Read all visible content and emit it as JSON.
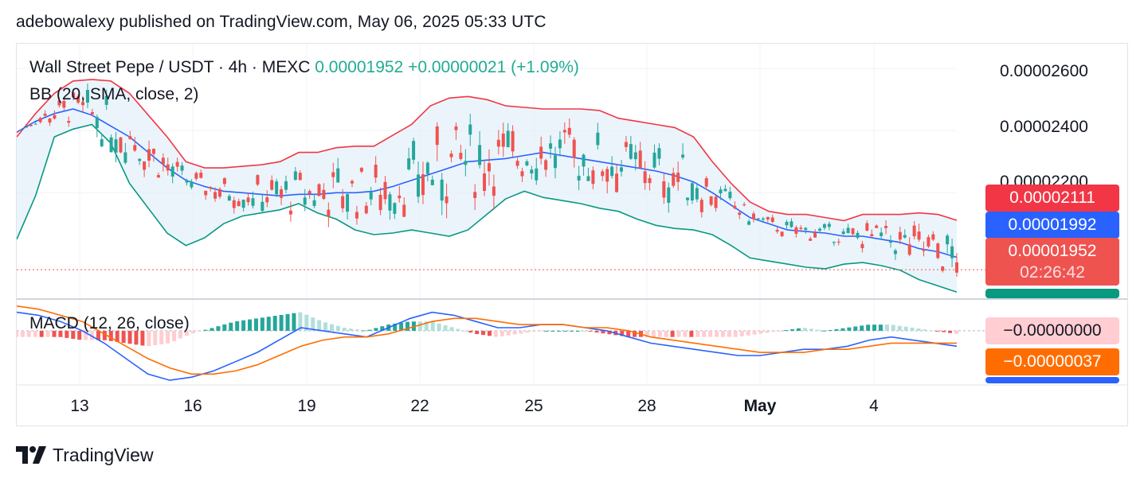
{
  "header": {
    "text": "adebowalexy published on TradingView.com, May 06, 2025 05:33 UTC"
  },
  "legend": {
    "symbol": "Wall Street Pepe / USDT · 4h · MEXC",
    "last": "0.00001952",
    "change": "+0.00000021 (+1.09%)",
    "bb": "BB (20, SMA, close, 2)",
    "macd": "MACD (12, 26, close)"
  },
  "price_tags": {
    "bb_upper": "0.00002111",
    "bb_basis": "0.00001992",
    "last_price": "0.00001952",
    "countdown": "02:26:42",
    "macd_hist": "−0.00000000",
    "macd_signal": "−0.00000037"
  },
  "colors": {
    "up": "#26a69a",
    "down": "#ef5350",
    "bb_upper": "#f23645",
    "bb_basis": "#2962ff",
    "bb_lower": "#089981",
    "bb_fill": "#e3effa",
    "macd_line": "#2962ff",
    "signal_line": "#ff6d00",
    "hist_up_strong": "#26a69a",
    "hist_up_weak": "#b2dfdb",
    "hist_down_strong": "#ef5350",
    "hist_down_weak": "#ffcdd2"
  },
  "footer": {
    "brand": "TradingView"
  },
  "chart_data": [
    {
      "type": "candlestick",
      "title": "Wall Street Pepe / USDT · 4h · MEXC",
      "x_ticks": [
        "13",
        "16",
        "19",
        "22",
        "25",
        "28",
        "May",
        "4"
      ],
      "y_ticks": [
        "0.00002600",
        "0.00002400",
        "0.00002200"
      ],
      "ylim": [
        1.86e-05,
        2.68e-05
      ],
      "grid": true,
      "last_price": 1.952e-05,
      "bollinger": {
        "period": 20,
        "upper_last": 2.111e-05,
        "basis_last": 1.992e-05
      },
      "series": [
        {
          "name": "BB upper",
          "values": [
            2.38e-05,
            2.455e-05,
            2.52e-05,
            2.56e-05,
            2.565e-05,
            2.56e-05,
            2.52e-05,
            2.45e-05,
            2.38e-05,
            2.3e-05,
            2.28e-05,
            2.28e-05,
            2.285e-05,
            2.29e-05,
            2.3e-05,
            2.33e-05,
            2.33e-05,
            2.345e-05,
            2.35e-05,
            2.35e-05,
            2.385e-05,
            2.42e-05,
            2.48e-05,
            2.505e-05,
            2.51e-05,
            2.5e-05,
            2.48e-05,
            2.475e-05,
            2.47e-05,
            2.47e-05,
            2.47e-05,
            2.465e-05,
            2.44e-05,
            2.43e-05,
            2.42e-05,
            2.41e-05,
            2.38e-05,
            2.3e-05,
            2.23e-05,
            2.17e-05,
            2.14e-05,
            2.13e-05,
            2.13e-05,
            2.12e-05,
            2.11e-05,
            2.13e-05,
            2.13e-05,
            2.13e-05,
            2.135e-05,
            2.13e-05,
            2.111e-05
          ]
        },
        {
          "name": "BB basis",
          "values": [
            2.395e-05,
            2.43e-05,
            2.455e-05,
            2.47e-05,
            2.45e-05,
            2.415e-05,
            2.38e-05,
            2.33e-05,
            2.28e-05,
            2.24e-05,
            2.22e-05,
            2.205e-05,
            2.2e-05,
            2.195e-05,
            2.19e-05,
            2.195e-05,
            2.195e-05,
            2.2e-05,
            2.2e-05,
            2.205e-05,
            2.22e-05,
            2.24e-05,
            2.26e-05,
            2.28e-05,
            2.3e-05,
            2.305e-05,
            2.31e-05,
            2.32e-05,
            2.33e-05,
            2.32e-05,
            2.31e-05,
            2.3e-05,
            2.29e-05,
            2.28e-05,
            2.27e-05,
            2.255e-05,
            2.235e-05,
            2.2e-05,
            2.16e-05,
            2.12e-05,
            2.1e-05,
            2.08e-05,
            2.075e-05,
            2.07e-05,
            2.06e-05,
            2.06e-05,
            2.05e-05,
            2.04e-05,
            2.02e-05,
            2.01e-05,
            1.992e-05
          ]
        },
        {
          "name": "BB lower",
          "values": [
            2.05e-05,
            2.19e-05,
            2.38e-05,
            2.405e-05,
            2.42e-05,
            2.36e-05,
            2.23e-05,
            2.15e-05,
            2.07e-05,
            2.03e-05,
            2.055e-05,
            2.1e-05,
            2.125e-05,
            2.135e-05,
            2.145e-05,
            2.165e-05,
            2.135e-05,
            2.115e-05,
            2.08e-05,
            2.065e-05,
            2.07e-05,
            2.08e-05,
            2.07e-05,
            2.06e-05,
            2.08e-05,
            2.13e-05,
            2.18e-05,
            2.205e-05,
            2.185e-05,
            2.175e-05,
            2.165e-05,
            2.15e-05,
            2.14e-05,
            2.115e-05,
            2.095e-05,
            2.085e-05,
            2.08e-05,
            2.065e-05,
            2.03e-05,
            1.99e-05,
            1.98e-05,
            1.97e-05,
            1.96e-05,
            1.955e-05,
            1.97e-05,
            1.975e-05,
            1.965e-05,
            1.95e-05,
            1.92e-05,
            1.9e-05,
            1.88e-05
          ]
        }
      ]
    },
    {
      "type": "line",
      "title": "MACD (12, 26, close)",
      "series": [
        {
          "name": "MACD",
          "values": [
            6e-07,
            5e-07,
            3e-07,
            0.0,
            -4e-07,
            -9e-07,
            -1.4e-06,
            -1.6e-06,
            -1.5e-06,
            -1.3e-06,
            -1e-06,
            -7e-07,
            -3e-07,
            1e-07,
            0.0,
            -1e-07,
            -2e-07,
            1e-07,
            4e-07,
            6e-07,
            5e-07,
            3e-07,
            1e-07,
            1e-07,
            2e-07,
            2e-07,
            1e-07,
            0.0,
            -2e-07,
            -4e-07,
            -5e-07,
            -6e-07,
            -7e-07,
            -8e-07,
            -8e-07,
            -7e-07,
            -6e-07,
            -6e-07,
            -5e-07,
            -3e-07,
            -2e-07,
            -3e-07,
            -4e-07,
            -5e-07
          ]
        },
        {
          "name": "Signal",
          "values": [
            8e-07,
            7e-07,
            5e-07,
            3e-07,
            -1e-07,
            -5e-07,
            -9e-07,
            -1.2e-06,
            -1.4e-06,
            -1.4e-06,
            -1.3e-06,
            -1.1e-06,
            -8e-07,
            -5e-07,
            -3e-07,
            -2e-07,
            -2e-07,
            -1e-07,
            1e-07,
            3e-07,
            4e-07,
            4e-07,
            3e-07,
            2e-07,
            2e-07,
            2e-07,
            1e-07,
            1e-07,
            0.0,
            -2e-07,
            -3e-07,
            -4e-07,
            -5e-07,
            -6e-07,
            -7e-07,
            -7e-07,
            -7e-07,
            -6e-07,
            -6e-07,
            -5e-07,
            -4e-07,
            -4e-07,
            -4e-07,
            -4e-07
          ]
        }
      ]
    }
  ]
}
